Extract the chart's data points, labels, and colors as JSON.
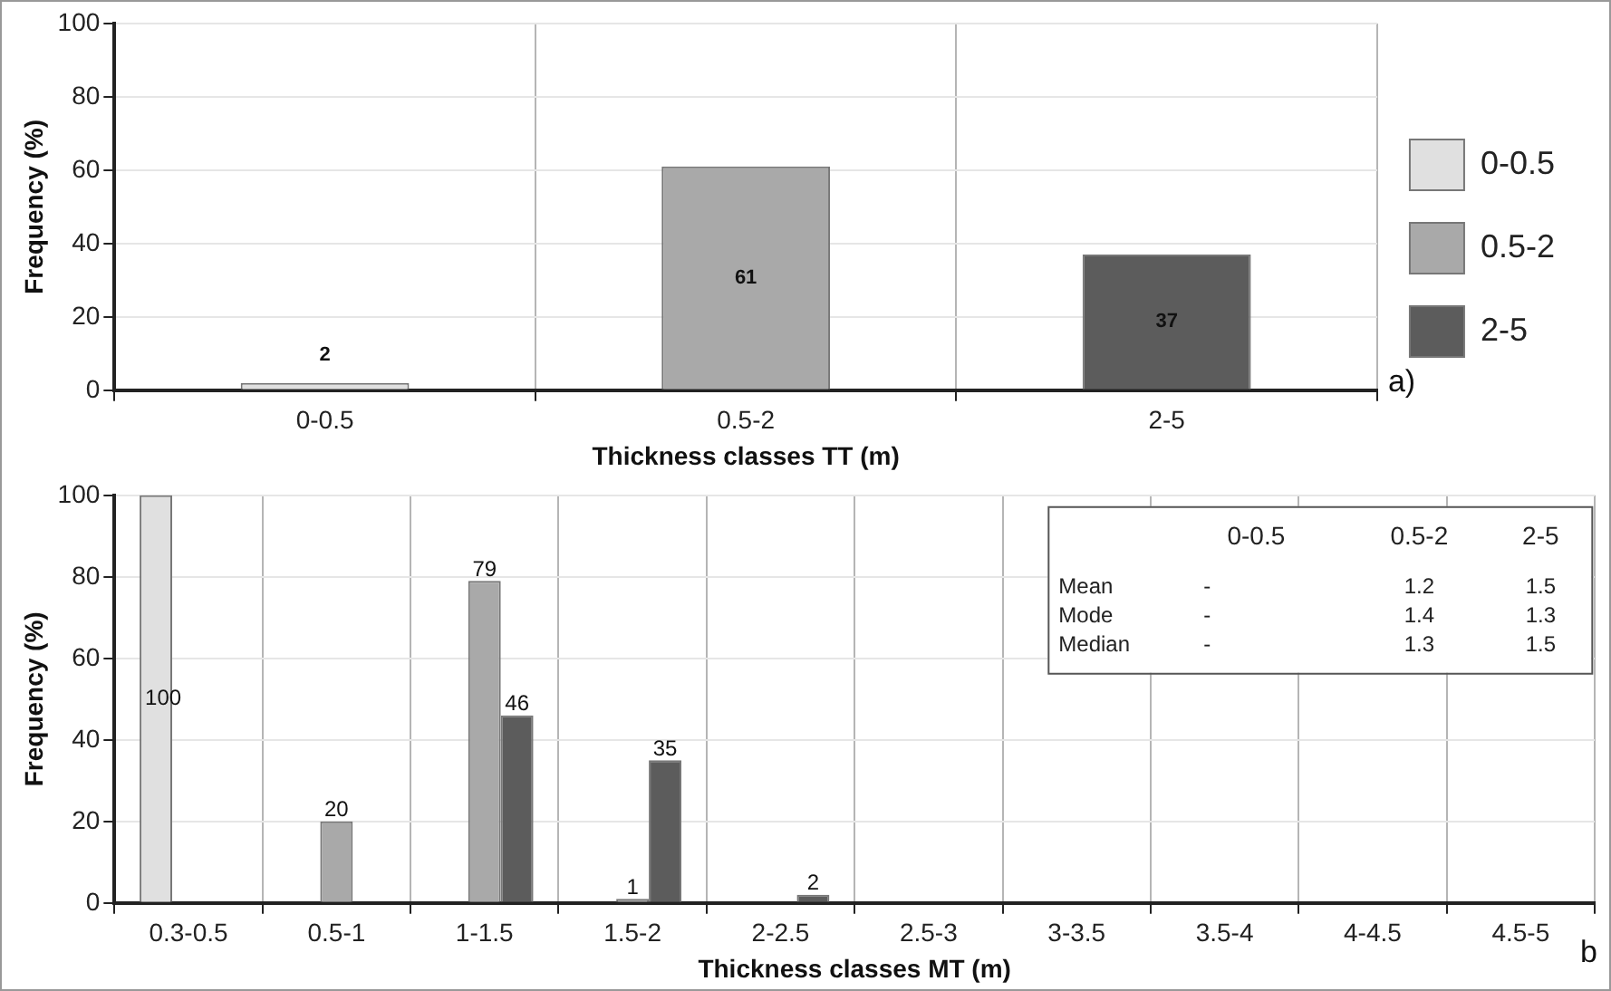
{
  "chart_data": [
    {
      "type": "bar",
      "ylabel": "Frequency (%)",
      "xlabel": "Thickness classes TT (m)",
      "categories": [
        "0-0.5",
        "0.5-2",
        "2-5"
      ],
      "series": [
        {
          "name": "0-0.5",
          "color": "#e0e0e0",
          "values": [
            2,
            null,
            null
          ]
        },
        {
          "name": "0.5-2",
          "color": "#a9a9a9",
          "values": [
            null,
            61,
            null
          ]
        },
        {
          "name": "2-5",
          "color": "#5c5c5c",
          "values": [
            null,
            null,
            37
          ]
        }
      ],
      "ylim": [
        0,
        100
      ],
      "yticks": [
        0,
        20,
        40,
        60,
        80,
        100
      ],
      "grid": true,
      "legend": "right",
      "data_labels": true,
      "annotations": [
        "a)"
      ]
    },
    {
      "type": "bar",
      "ylabel": "Frequency (%)",
      "xlabel": "Thickness classes MT (m)",
      "categories": [
        "0.3-0.5",
        "0.5-1",
        "1-1.5",
        "1.5-2",
        "2-2.5",
        "2.5-3",
        "3-3.5",
        "3.5-4",
        "4-4.5",
        "4.5-5"
      ],
      "series": [
        {
          "color": "#e0e0e0",
          "values": [
            100,
            0,
            0,
            0,
            0,
            0,
            0,
            0,
            0,
            0
          ],
          "value_labels": [
            "100",
            null,
            null,
            null,
            null,
            null,
            null,
            null,
            null,
            null
          ]
        },
        {
          "color": "#a9a9a9",
          "values": [
            0,
            20,
            79,
            1,
            0,
            0,
            0,
            0,
            0,
            0
          ],
          "value_labels": [
            null,
            "20",
            "79",
            "1",
            null,
            null,
            null,
            null,
            null,
            null
          ]
        },
        {
          "color": "#5c5c5c",
          "values": [
            0,
            0,
            46,
            35,
            2,
            0,
            0,
            0,
            0,
            0
          ],
          "value_labels": [
            null,
            null,
            "46",
            "35",
            "2",
            null,
            null,
            null,
            null,
            null
          ]
        }
      ],
      "ylim": [
        0,
        100
      ],
      "yticks": [
        0,
        20,
        40,
        60,
        80,
        100
      ],
      "grid": true,
      "annotations": [
        "b",
        "0-0.5",
        "0.5-2",
        "2-5",
        "Mean",
        "-",
        "1.2",
        "1.5",
        "Mode",
        "-",
        "1.4",
        "1.3",
        "Median",
        "-",
        "1.3",
        "1.5"
      ]
    }
  ]
}
